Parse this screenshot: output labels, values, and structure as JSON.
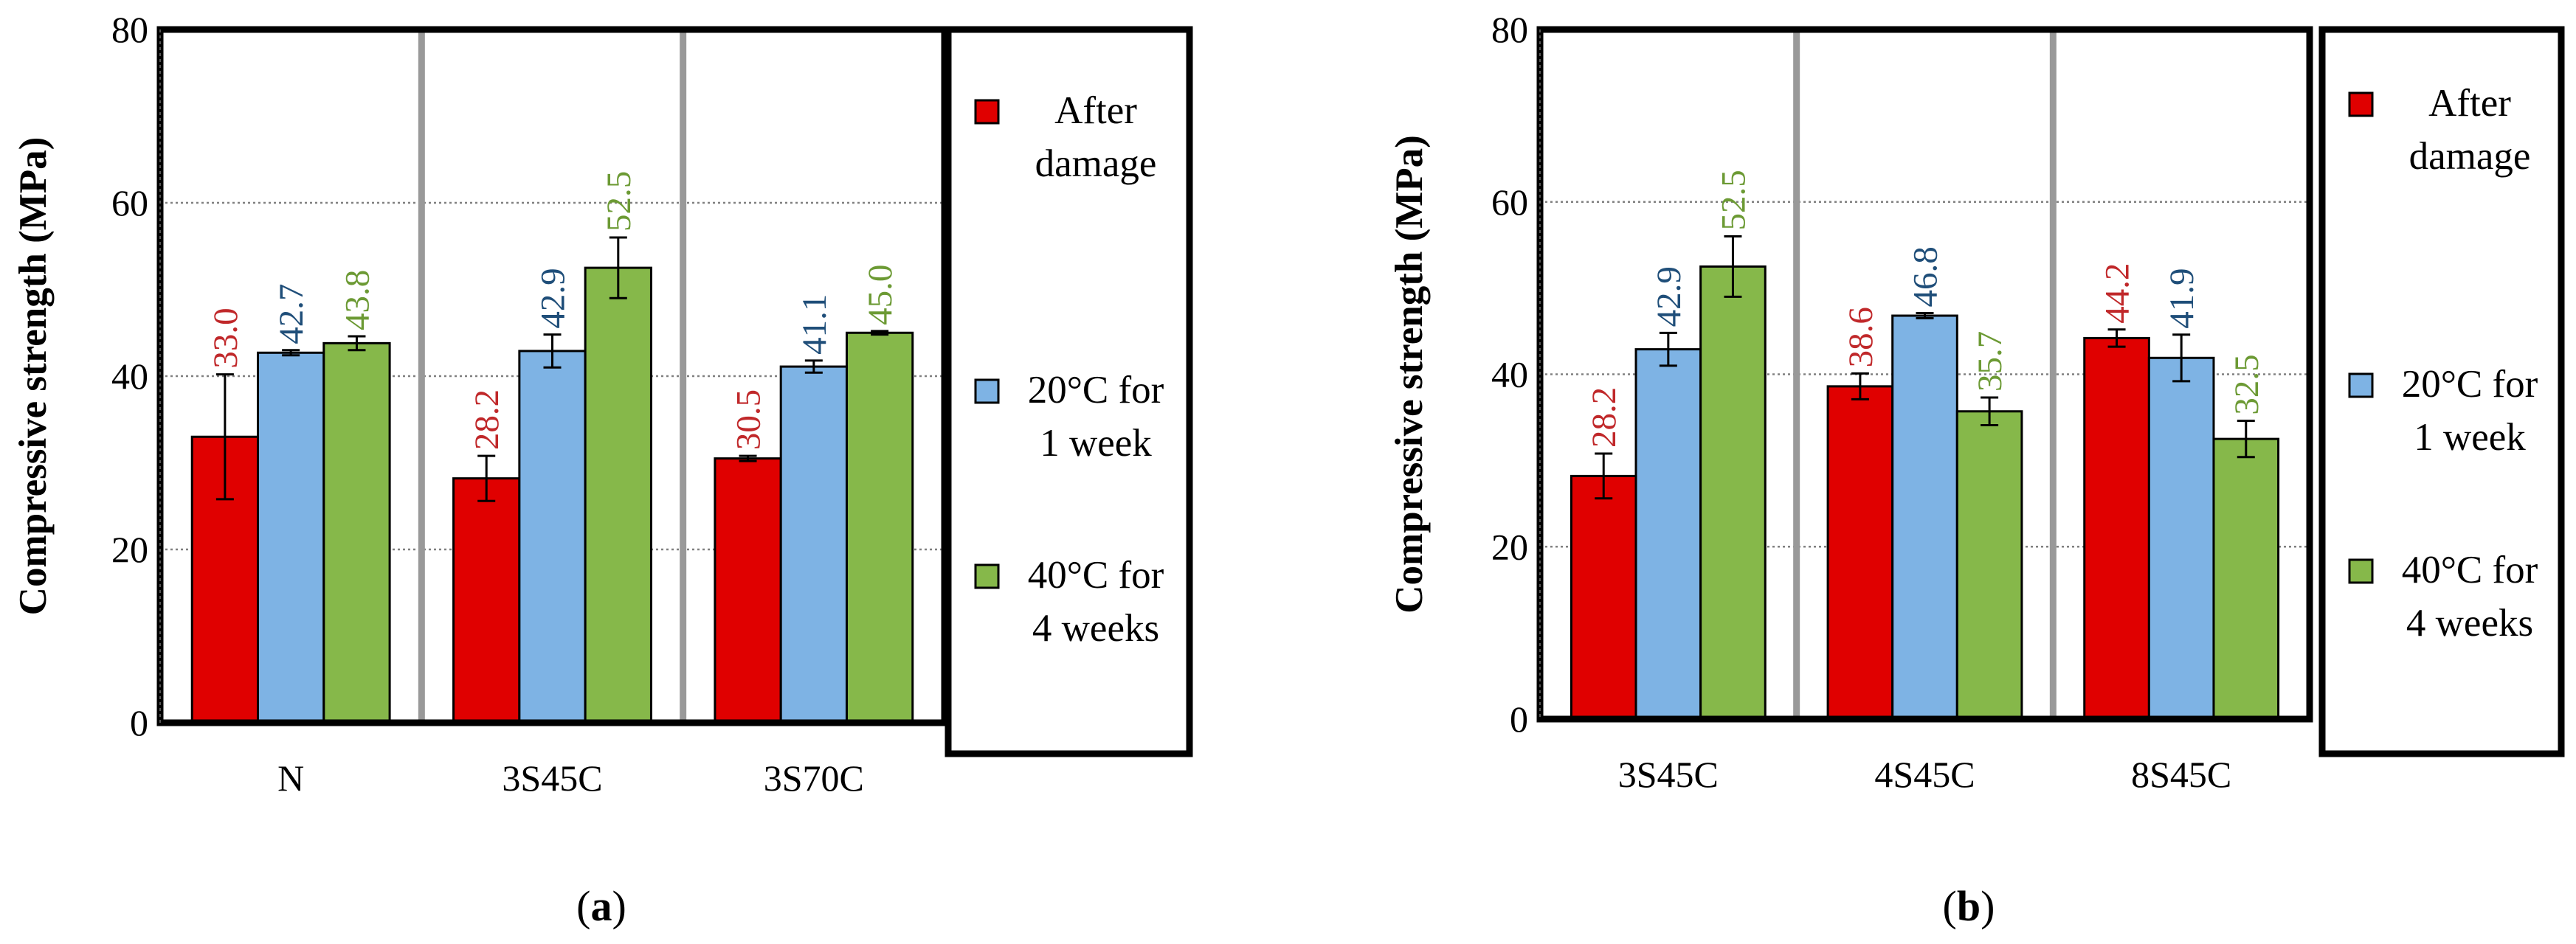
{
  "figure": {
    "panel_labels": [
      "(a)",
      "(b)"
    ]
  },
  "colors": {
    "after_damage": "#e00000",
    "week1_20C": "#7eb3e4",
    "weeks4_40C": "#86b84a",
    "label_after_damage": "#c0282a",
    "label_week1_20C": "#1f4e79",
    "label_weeks4_40C": "#6c9a34",
    "separator": "#999999",
    "gridline": "#808080"
  },
  "chart_data": [
    {
      "type": "bar",
      "panel": "(a)",
      "title": "",
      "xlabel": "",
      "ylabel": "Compressive strength (MPa)",
      "ylim": [
        0,
        80
      ],
      "yticks": [
        0,
        20,
        40,
        60,
        80
      ],
      "grid": true,
      "legend_position": "right",
      "categories": [
        "N",
        "3S45C",
        "3S70C"
      ],
      "series": [
        {
          "name": "After damage",
          "legend_lines": [
            "After",
            "damage"
          ],
          "color": "#e00000",
          "label_color": "#c0282a",
          "values": [
            33.0,
            28.2,
            30.5
          ],
          "errors": [
            7.2,
            2.6,
            0.3
          ],
          "labels": [
            "33.0",
            "28.2",
            "30.5"
          ]
        },
        {
          "name": "20°C for 1 week",
          "legend_lines": [
            "20°C for",
            "1 week"
          ],
          "color": "#7eb3e4",
          "label_color": "#1f4e79",
          "values": [
            42.7,
            42.9,
            41.1
          ],
          "errors": [
            0.3,
            1.9,
            0.7
          ],
          "labels": [
            "42.7",
            "42.9",
            "41.1"
          ]
        },
        {
          "name": "40°C for 4 weeks",
          "legend_lines": [
            "40°C for",
            "4 weeks"
          ],
          "color": "#86b84a",
          "label_color": "#6c9a34",
          "values": [
            43.8,
            52.5,
            45.0
          ],
          "errors": [
            0.8,
            3.5,
            0.2
          ],
          "labels": [
            "43.8",
            "52.5",
            "45.0"
          ]
        }
      ]
    },
    {
      "type": "bar",
      "panel": "(b)",
      "title": "",
      "xlabel": "",
      "ylabel": "Compressive strength (MPa)",
      "ylim": [
        0,
        80
      ],
      "yticks": [
        0,
        20,
        40,
        60,
        80
      ],
      "grid": true,
      "legend_position": "right",
      "categories": [
        "3S45C",
        "4S45C",
        "8S45C"
      ],
      "series": [
        {
          "name": "After damage",
          "legend_lines": [
            "After",
            "damage"
          ],
          "color": "#e00000",
          "label_color": "#c0282a",
          "values": [
            28.2,
            38.6,
            44.2
          ],
          "errors": [
            2.6,
            1.5,
            1.0
          ],
          "labels": [
            "28.2",
            "38.6",
            "44.2"
          ]
        },
        {
          "name": "20°C for 1 week",
          "legend_lines": [
            "20°C for",
            "1 week"
          ],
          "color": "#7eb3e4",
          "label_color": "#1f4e79",
          "values": [
            42.9,
            46.8,
            41.9
          ],
          "errors": [
            1.9,
            0.3,
            2.7
          ],
          "labels": [
            "42.9",
            "46.8",
            "41.9"
          ]
        },
        {
          "name": "40°C for 4 weeks",
          "legend_lines": [
            "40°C for",
            "4 weeks"
          ],
          "color": "#86b84a",
          "label_color": "#6c9a34",
          "values": [
            52.5,
            35.7,
            32.5
          ],
          "errors": [
            3.5,
            1.6,
            2.1
          ],
          "labels": [
            "52.5",
            "35.7",
            "32.5"
          ]
        }
      ]
    }
  ]
}
